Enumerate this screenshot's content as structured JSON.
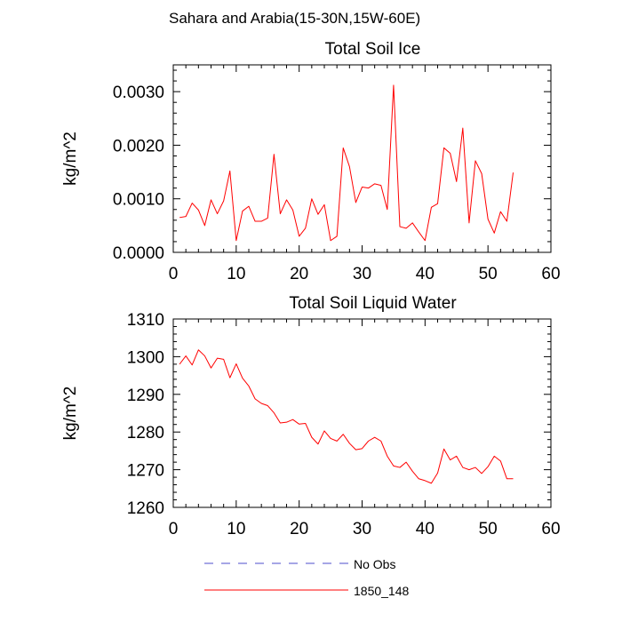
{
  "figure_title": "Sahara and Arabia(15-30N,15W-60E)",
  "chart_data": [
    {
      "type": "line",
      "title": "Total Soil Ice",
      "xlabel": "",
      "ylabel": "kg/m^2",
      "xlim": [
        0,
        60
      ],
      "ylim": [
        0,
        0.0035
      ],
      "xticks": [
        0,
        10,
        20,
        30,
        40,
        50,
        60
      ],
      "xtick_labels": [
        "0",
        "10",
        "20",
        "30",
        "40",
        "50",
        "60"
      ],
      "yticks": [
        0,
        0.001,
        0.002,
        0.003
      ],
      "ytick_labels": [
        "0.0000",
        "0.0010",
        "0.0020",
        "0.0030"
      ],
      "grid": false,
      "series": [
        {
          "name": "1850_148",
          "color": "#ff0000",
          "x": [
            1,
            2,
            3,
            4,
            5,
            6,
            7,
            8,
            9,
            10,
            11,
            12,
            13,
            14,
            15,
            16,
            17,
            18,
            19,
            20,
            21,
            22,
            23,
            24,
            25,
            26,
            27,
            28,
            29,
            30,
            31,
            32,
            33,
            34,
            35,
            36,
            37,
            38,
            39,
            40,
            41,
            42,
            43,
            44,
            45,
            46,
            47,
            48,
            49,
            50,
            51,
            52,
            53,
            54
          ],
          "y": [
            0.00065,
            0.00067,
            0.00092,
            0.00079,
            0.0005,
            0.00098,
            0.00072,
            0.00096,
            0.00152,
            0.00022,
            0.00077,
            0.00086,
            0.00058,
            0.00058,
            0.00064,
            0.00183,
            0.00072,
            0.00098,
            0.00079,
            0.0003,
            0.00045,
            0.001,
            0.00071,
            0.00089,
            0.00022,
            0.0003,
            0.00195,
            0.0016,
            0.00093,
            0.00122,
            0.0012,
            0.00128,
            0.00125,
            0.0008,
            0.00312,
            0.00048,
            0.00045,
            0.00055,
            0.00038,
            0.00022,
            0.00084,
            0.00091,
            0.00195,
            0.00185,
            0.00132,
            0.00232,
            0.00055,
            0.00171,
            0.00147,
            0.00062,
            0.00036,
            0.00076,
            0.00058,
            0.00149
          ]
        }
      ]
    },
    {
      "type": "line",
      "title": "Total Soil Liquid Water",
      "xlabel": "",
      "ylabel": "kg/m^2",
      "xlim": [
        0,
        60
      ],
      "ylim": [
        1260,
        1310
      ],
      "xticks": [
        0,
        10,
        20,
        30,
        40,
        50,
        60
      ],
      "xtick_labels": [
        "0",
        "10",
        "20",
        "30",
        "40",
        "50",
        "60"
      ],
      "yticks": [
        1260,
        1270,
        1280,
        1290,
        1300,
        1310
      ],
      "ytick_labels": [
        "1260",
        "1270",
        "1280",
        "1290",
        "1300",
        "1310"
      ],
      "grid": false,
      "series": [
        {
          "name": "1850_148",
          "color": "#ff0000",
          "x": [
            1,
            2,
            3,
            4,
            5,
            6,
            7,
            8,
            9,
            10,
            11,
            12,
            13,
            14,
            15,
            16,
            17,
            18,
            19,
            20,
            21,
            22,
            23,
            24,
            25,
            26,
            27,
            28,
            29,
            30,
            31,
            32,
            33,
            34,
            35,
            36,
            37,
            38,
            39,
            40,
            41,
            42,
            43,
            44,
            45,
            46,
            47,
            48,
            49,
            50,
            51,
            52,
            53,
            54
          ],
          "y": [
            1298.0,
            1300.2,
            1297.8,
            1301.8,
            1300.2,
            1297.0,
            1299.6,
            1299.3,
            1294.4,
            1298.1,
            1294.3,
            1292.2,
            1288.8,
            1287.6,
            1287.0,
            1285.1,
            1282.4,
            1282.6,
            1283.3,
            1282.1,
            1282.3,
            1278.6,
            1276.8,
            1280.3,
            1278.3,
            1277.6,
            1279.4,
            1277.0,
            1275.3,
            1275.6,
            1277.6,
            1278.6,
            1277.6,
            1273.6,
            1271.0,
            1270.6,
            1272.0,
            1269.6,
            1267.6,
            1267.1,
            1266.4,
            1269.1,
            1275.5,
            1272.6,
            1273.6,
            1270.6,
            1270.0,
            1270.6,
            1269.0,
            1270.8,
            1273.6,
            1272.3,
            1267.6,
            1267.6
          ]
        }
      ]
    }
  ],
  "legend": {
    "placement": "bottom",
    "entries": [
      {
        "label": "No Obs",
        "color": "#4d4dcc",
        "style": "dashed"
      },
      {
        "label": "1850_148",
        "color": "#ff0000",
        "style": "solid"
      }
    ]
  }
}
